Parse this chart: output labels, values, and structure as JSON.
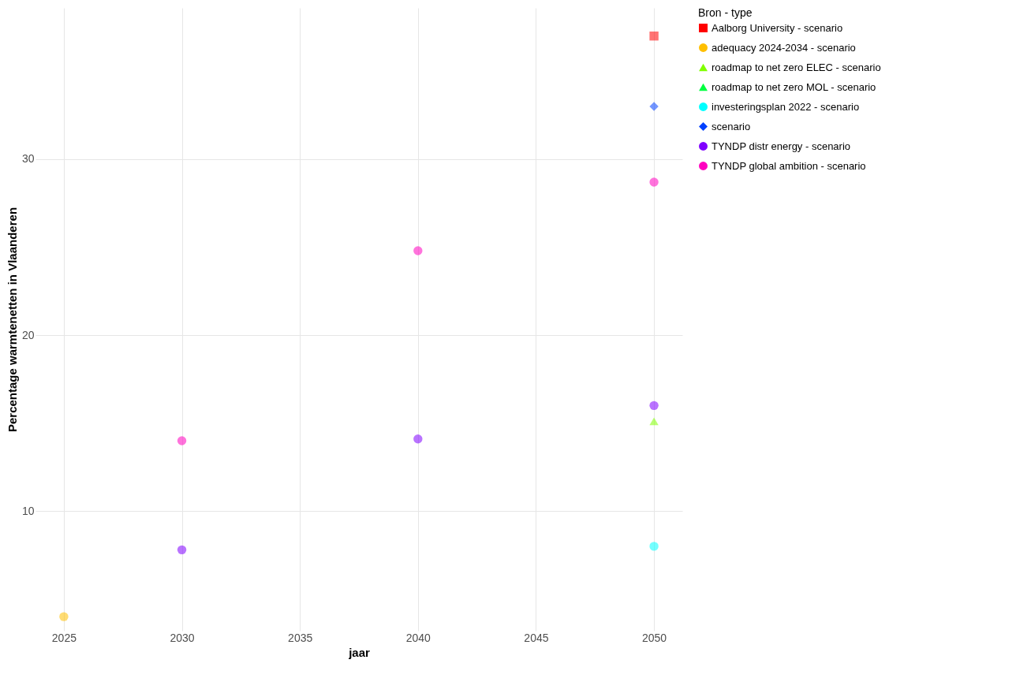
{
  "chart_data": {
    "type": "scatter",
    "xlabel": "jaar",
    "ylabel": "Percentage warmtenetten in Vlaanderen",
    "legend_title": "Bron - type",
    "legend": "right",
    "grid": true,
    "xlim": [
      2023.8,
      2051.2
    ],
    "xticks": [
      2025,
      2030,
      2035,
      2040,
      2045,
      2050
    ],
    "ylim": [
      3.2,
      38.6
    ],
    "yticks": [
      10,
      20,
      30
    ],
    "series": [
      {
        "name": "Aalborg University - scenario",
        "color": "#ff0000",
        "marker": "square",
        "x": [
          2050
        ],
        "values": [
          37.0
        ]
      },
      {
        "name": "adequacy 2024-2034 - scenario",
        "color": "#ffbf00",
        "marker": "circle",
        "x": [
          2025
        ],
        "values": [
          4.0
        ]
      },
      {
        "name": "roadmap to net zero ELEC - scenario",
        "color": "#80ff00",
        "marker": "triangle",
        "x": [
          2050
        ],
        "values": [
          15.1
        ]
      },
      {
        "name": "roadmap to net zero MOL - scenario",
        "color": "#00ff40",
        "marker": "triangle",
        "x": [
          null
        ],
        "values": [
          null
        ]
      },
      {
        "name": "investeringsplan 2022 - scenario",
        "color": "#00ffff",
        "marker": "circle",
        "x": [
          2050
        ],
        "values": [
          8.0
        ]
      },
      {
        "name": "scenario",
        "color": "#0040ff",
        "marker": "diamond",
        "x": [
          2050
        ],
        "values": [
          33.0
        ]
      },
      {
        "name": "TYNDP distr energy - scenario",
        "color": "#8000ff",
        "marker": "circle",
        "x": [
          2030,
          2040,
          2050
        ],
        "values": [
          7.8,
          14.1,
          16.0
        ]
      },
      {
        "name": "TYNDP global ambition - scenario",
        "color": "#ff00c0",
        "marker": "circle",
        "x": [
          2030,
          2040,
          2050
        ],
        "values": [
          14.0,
          24.8,
          28.7
        ]
      }
    ]
  }
}
